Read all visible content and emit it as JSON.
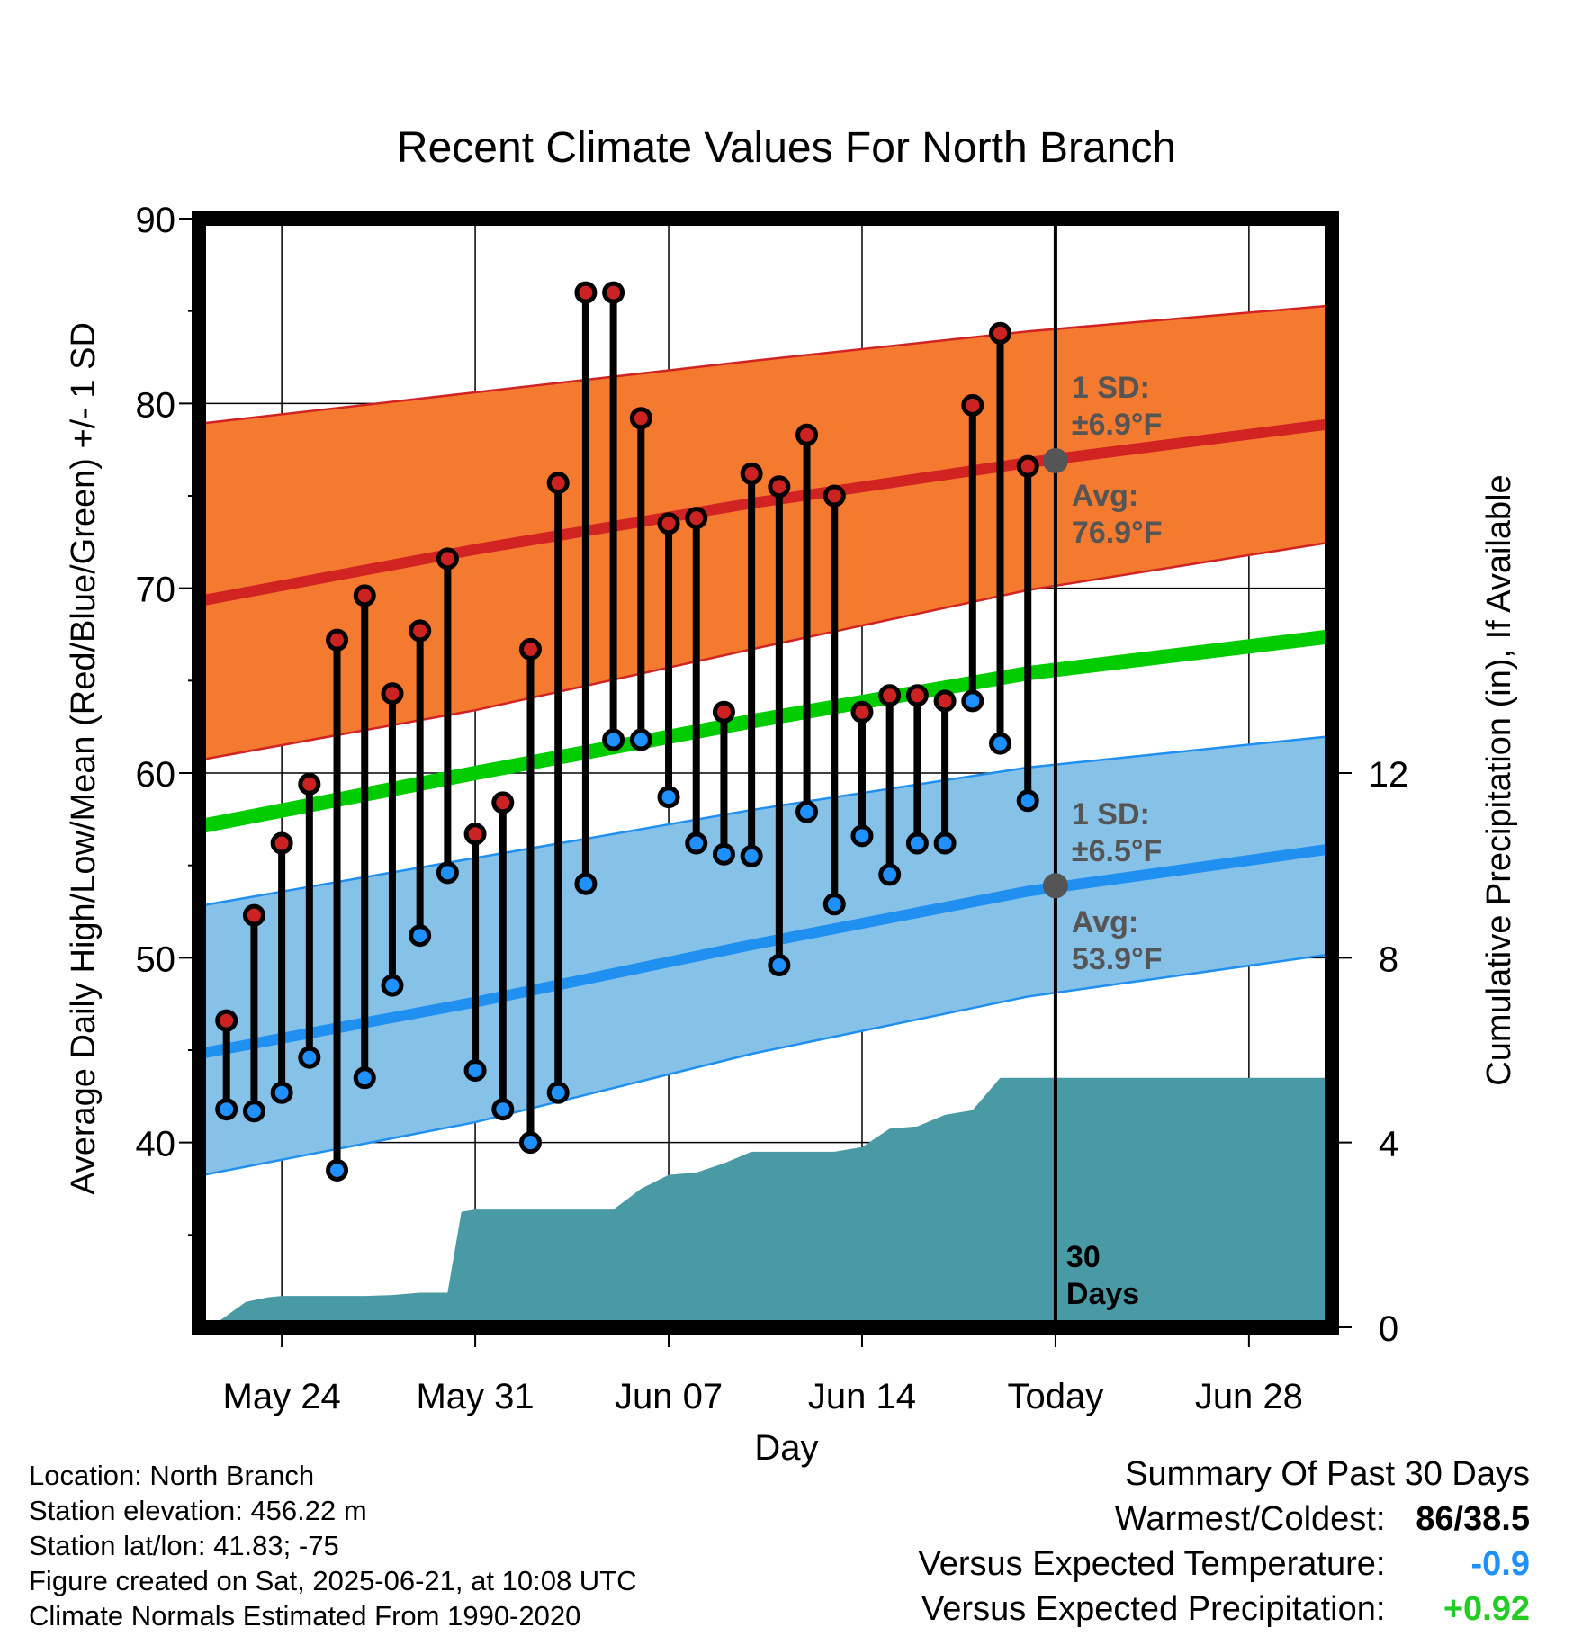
{
  "colors": {
    "high_band": "#f37a2f",
    "high_line": "#d22323",
    "low_band": "#86c1e8",
    "low_line": "#1f8ff0",
    "mean_line": "#00cc00",
    "precip_fill": "#4a9aa5",
    "annotation_gray": "#555555",
    "dot_high": "#cc2222",
    "dot_low": "#1e90ff",
    "temp_diff": "#1e90ff",
    "precip_diff": "#22cc22"
  },
  "chart_data": {
    "type": "line",
    "title": "Recent Climate Values For North Branch",
    "xlabel": "Day",
    "ylabel": "Average Daily High/Low/Mean (Red/Blue/Green) +/- 1 SD",
    "ylabel_right": "Cumulative Precipitation (in), If Available",
    "x_tick_labels": [
      "May 24",
      "May 31",
      "Jun 07",
      "Jun 14",
      "Today",
      "Jun 28"
    ],
    "x_tick_days": [
      3,
      10,
      17,
      24,
      31,
      38
    ],
    "x_range_days": [
      0,
      41
    ],
    "ylim": [
      30,
      90
    ],
    "y_ticks": [
      40,
      50,
      60,
      70,
      80,
      90
    ],
    "y2lim": [
      0,
      24
    ],
    "y2_ticks": [
      0,
      4,
      8,
      12
    ],
    "grid": true,
    "today_day": 31,
    "days_label": "30\nDays",
    "normals": {
      "day": [
        0,
        10,
        20,
        30,
        41
      ],
      "avg_high": [
        69.3,
        72.1,
        74.6,
        76.8,
        78.9
      ],
      "high_plus_sd": [
        78.9,
        80.6,
        82.3,
        83.9,
        85.3
      ],
      "high_minus_sd": [
        60.7,
        63.4,
        66.7,
        69.9,
        72.5
      ],
      "avg_mean": [
        57.1,
        60.0,
        62.8,
        65.4,
        67.4
      ],
      "avg_low": [
        44.8,
        47.6,
        50.7,
        53.6,
        55.9
      ],
      "low_plus_sd": [
        52.8,
        55.4,
        58.0,
        60.3,
        62.0
      ],
      "low_minus_sd": [
        38.2,
        41.1,
        44.8,
        47.9,
        50.2
      ]
    },
    "observations": {
      "day": [
        1,
        2,
        3,
        4,
        5,
        6,
        7,
        8,
        9,
        10,
        11,
        12,
        13,
        14,
        15,
        16,
        17,
        18,
        19,
        20,
        21,
        22,
        23,
        24,
        25,
        26,
        27,
        28,
        29,
        30
      ],
      "high": [
        46.6,
        52.3,
        56.2,
        59.4,
        67.2,
        69.6,
        64.3,
        67.7,
        71.6,
        56.7,
        58.4,
        66.7,
        75.7,
        86,
        86,
        79.2,
        73.5,
        73.8,
        63.3,
        76.2,
        75.5,
        78.3,
        75,
        63.3,
        64.2,
        64.2,
        63.9,
        79.9,
        83.8,
        76.6
      ],
      "low": [
        41.8,
        41.7,
        42.7,
        44.6,
        38.5,
        43.5,
        48.5,
        51.2,
        54.6,
        43.9,
        41.8,
        40,
        42.7,
        54,
        61.8,
        61.8,
        58.7,
        56.2,
        55.6,
        55.5,
        49.6,
        57.9,
        52.9,
        56.6,
        54.5,
        56.2,
        56.2,
        63.9,
        61.6,
        58.5
      ]
    },
    "precipitation": {
      "day": [
        0.4,
        1,
        1.7,
        2.5,
        3,
        4,
        5,
        6,
        7,
        8,
        9,
        9.5,
        10,
        12,
        13,
        14,
        15,
        16,
        17,
        18,
        19,
        20,
        21,
        22,
        23,
        24,
        25,
        26,
        27,
        28,
        29,
        30,
        31,
        41
      ],
      "value": [
        0,
        0.25,
        0.55,
        0.65,
        0.68,
        0.68,
        0.68,
        0.68,
        0.7,
        0.75,
        0.75,
        2.5,
        2.55,
        2.55,
        2.55,
        2.55,
        2.55,
        3.0,
        3.3,
        3.35,
        3.55,
        3.8,
        3.8,
        3.8,
        3.8,
        3.9,
        4.3,
        4.35,
        4.6,
        4.7,
        5.4,
        5.4,
        5.4,
        5.4
      ]
    },
    "annotations": {
      "high_sd": "1 SD:\n±6.9°F",
      "high_avg": "Avg:\n76.9°F",
      "low_sd": "1 SD:\n±6.5°F",
      "low_avg": "Avg:\n53.9°F",
      "high_avg_value": 76.9,
      "low_avg_value": 53.9
    }
  },
  "info": {
    "location": "Location: North Branch",
    "elevation": "Station elevation: 456.22 m",
    "latlon": "Station lat/lon: 41.83; -75",
    "created": "Figure created on Sat, 2025-06-21, at 10:08 UTC",
    "normals": "Climate Normals Estimated From 1990-2020"
  },
  "summary": {
    "title": "Summary Of Past 30 Days",
    "warmest_label": "Warmest/Coldest:",
    "warmest_value": "86/38.5",
    "temp_label": "Versus Expected Temperature:",
    "temp_value": "-0.9",
    "precip_label": "Versus Expected Precipitation:",
    "precip_value": "+0.92"
  }
}
